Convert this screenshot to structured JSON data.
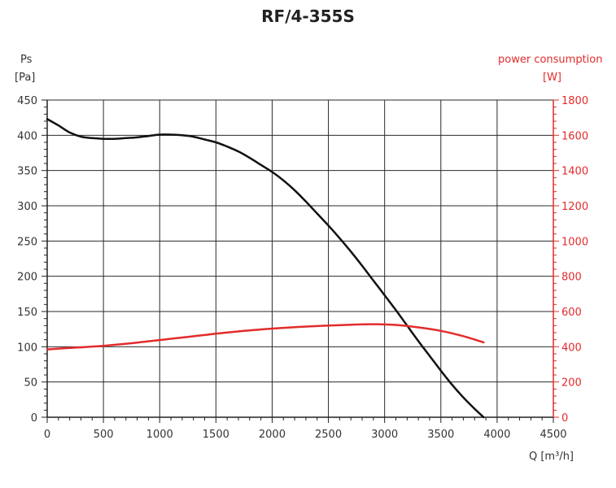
{
  "chart_data": {
    "type": "line",
    "title": "RF/4-355S",
    "xlabel": "Q [m³/h]",
    "ylabel_left": [
      "Ps",
      "[Pa]"
    ],
    "ylabel_right": [
      "power consumption",
      "[W]"
    ],
    "xlim": [
      0,
      4500
    ],
    "ylim_left": [
      0,
      450
    ],
    "ylim_right": [
      0,
      1800
    ],
    "x_ticks": [
      0,
      500,
      1000,
      1500,
      2000,
      2500,
      3000,
      3500,
      4000,
      4500
    ],
    "y_left_ticks": [
      0,
      50,
      100,
      150,
      200,
      250,
      300,
      350,
      400,
      450
    ],
    "y_right_ticks": [
      0,
      200,
      400,
      600,
      800,
      1000,
      1200,
      1400,
      1600,
      1800
    ],
    "grid": true,
    "series": [
      {
        "axis": "left",
        "color": "#111111",
        "x": [
          0,
          100,
          200,
          300,
          400,
          500,
          600,
          700,
          800,
          900,
          1000,
          1100,
          1200,
          1300,
          1400,
          1500,
          1600,
          1700,
          1800,
          1900,
          2000,
          2100,
          2200,
          2300,
          2400,
          2500,
          2600,
          2700,
          2800,
          2900,
          3000,
          3100,
          3200,
          3300,
          3400,
          3500,
          3600,
          3700,
          3800,
          3880
        ],
        "y": [
          423,
          414,
          404,
          398,
          396,
          395,
          395,
          396,
          397,
          399,
          401,
          401,
          400,
          398,
          394,
          390,
          384,
          377,
          368,
          358,
          348,
          336,
          322,
          306,
          289,
          272,
          254,
          235,
          215,
          194,
          173,
          152,
          130,
          108,
          87,
          66,
          46,
          28,
          12,
          0
        ]
      },
      {
        "axis": "right",
        "color": "#e32b2b",
        "x": [
          0,
          250,
          500,
          750,
          1000,
          1250,
          1500,
          1750,
          2000,
          2250,
          2500,
          2750,
          2900,
          3100,
          3300,
          3500,
          3700,
          3880
        ],
        "y": [
          385,
          395,
          405,
          420,
          438,
          456,
          474,
          490,
          503,
          513,
          520,
          526,
          528,
          524,
          510,
          490,
          460,
          425
        ]
      }
    ]
  }
}
